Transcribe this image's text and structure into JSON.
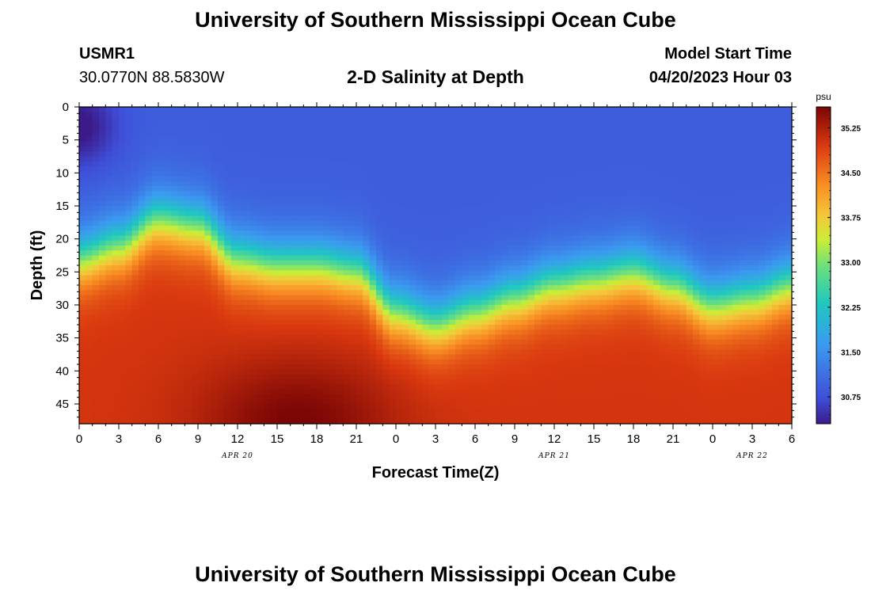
{
  "header": {
    "title": "University of Southern Mississippi Ocean Cube",
    "station_id": "USMR1",
    "station_coords": "30.0770N  88.5830W",
    "subtitle": "2-D Salinity at Depth",
    "model_start_label": "Model Start Time",
    "model_start_value": "04/20/2023 Hour 03"
  },
  "footer": {
    "title": "University of Southern Mississippi Ocean Cube"
  },
  "chart_data": {
    "type": "heatmap",
    "title": "2-D Salinity at Depth",
    "xlabel": "Forecast Time(Z)",
    "ylabel": "Depth (ft)",
    "x_tick_labels": [
      "0",
      "3",
      "6",
      "9",
      "12",
      "15",
      "18",
      "21",
      "0",
      "3",
      "6",
      "9",
      "12",
      "15",
      "18",
      "21",
      "0",
      "3",
      "6"
    ],
    "x_range_hours": [
      0,
      54
    ],
    "date_labels": [
      {
        "text": "APR 20",
        "hour": 12
      },
      {
        "text": "APR 21",
        "hour": 36
      },
      {
        "text": "APR 22",
        "hour": 51
      }
    ],
    "y_tick_labels": [
      "0",
      "5",
      "10",
      "15",
      "20",
      "25",
      "30",
      "35",
      "40",
      "45"
    ],
    "y_range_ft": [
      0,
      48
    ],
    "y_inverted": true,
    "colorbar": {
      "unit": "psu",
      "range": [
        30.3,
        35.6
      ],
      "ticks": [
        "35.25",
        "34.50",
        "33.75",
        "33.00",
        "32.25",
        "31.50",
        "30.75"
      ]
    },
    "surface_salinity_psu": 30.9,
    "deep_salinity_psu": 35.0,
    "halocline_depth_ft": [
      {
        "hour": 0,
        "depth": 23
      },
      {
        "hour": 3,
        "depth": 21
      },
      {
        "hour": 6,
        "depth": 17
      },
      {
        "hour": 9,
        "depth": 18
      },
      {
        "hour": 12,
        "depth": 23
      },
      {
        "hour": 15,
        "depth": 24
      },
      {
        "hour": 18,
        "depth": 24
      },
      {
        "hour": 21,
        "depth": 25
      },
      {
        "hour": 24,
        "depth": 31
      },
      {
        "hour": 27,
        "depth": 33
      },
      {
        "hour": 30,
        "depth": 31
      },
      {
        "hour": 33,
        "depth": 29
      },
      {
        "hour": 36,
        "depth": 27
      },
      {
        "hour": 39,
        "depth": 26
      },
      {
        "hour": 42,
        "depth": 25
      },
      {
        "hour": 45,
        "depth": 27
      },
      {
        "hour": 48,
        "depth": 30
      },
      {
        "hour": 51,
        "depth": 29
      },
      {
        "hour": 54,
        "depth": 27
      }
    ],
    "surface_low_psu": 30.3,
    "surface_low_hours": [
      0,
      2
    ],
    "surface_low_depth_ft": [
      0,
      6
    ],
    "bottom_high_psu": 35.5,
    "bottom_high_hours": [
      12,
      21
    ],
    "bottom_high_depth_ft": [
      38,
      48
    ]
  }
}
